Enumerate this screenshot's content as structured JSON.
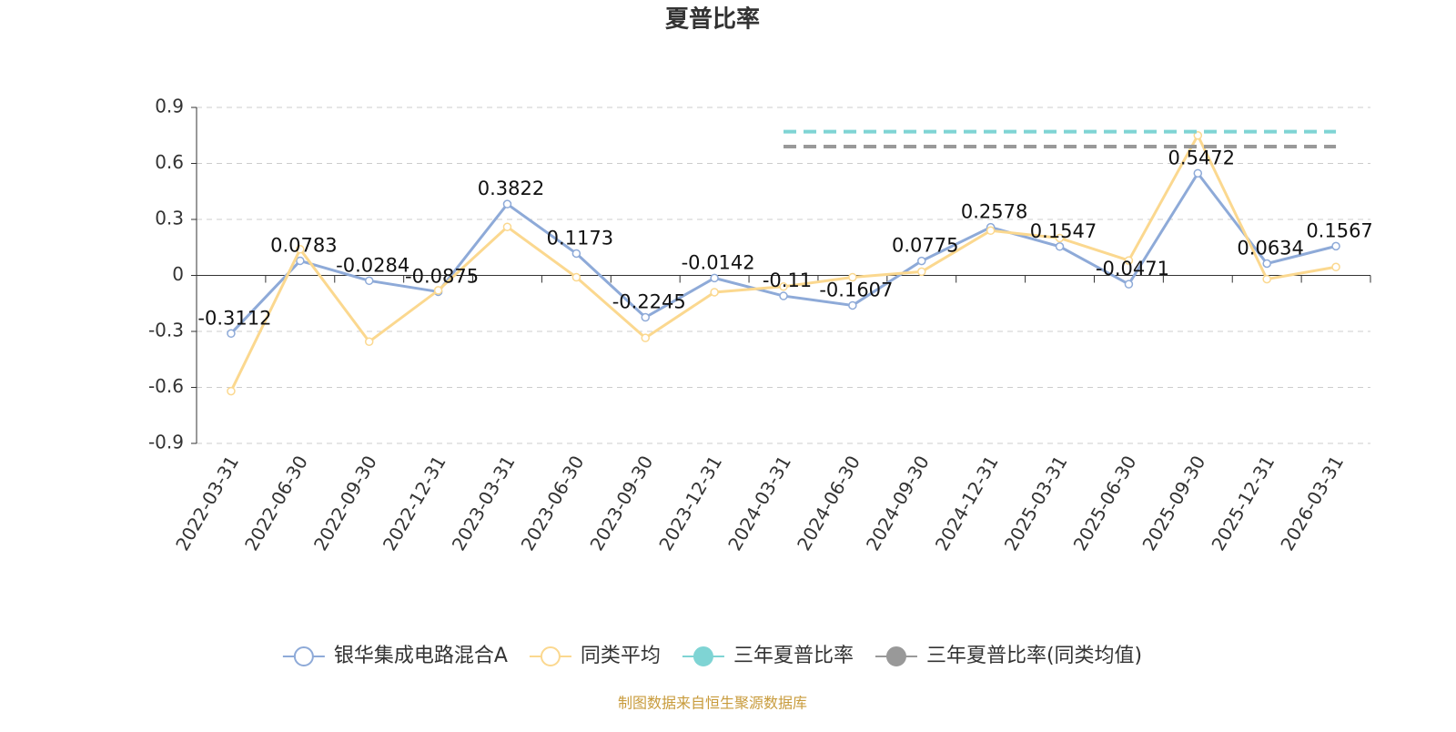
{
  "chart_data": {
    "type": "line",
    "title": "夏普比率",
    "categories": [
      "2022-03-31",
      "2022-06-30",
      "2022-09-30",
      "2022-12-31",
      "2023-03-31",
      "2023-06-30",
      "2023-09-30",
      "2023-12-31",
      "2024-03-31",
      "2024-06-30",
      "2024-09-30",
      "2024-12-31",
      "2025-03-31",
      "2025-06-30",
      "2025-09-30",
      "2025-12-31",
      "2026-03-31"
    ],
    "series": [
      {
        "name": "银华集成电路混合A",
        "color": "#8eaad8",
        "values": [
          -0.3112,
          0.0783,
          -0.0284,
          -0.0875,
          0.3822,
          0.1173,
          -0.2245,
          -0.0142,
          -0.11,
          -0.1607,
          0.0775,
          0.2578,
          0.1547,
          -0.0471,
          0.5472,
          0.0634,
          0.1567
        ]
      },
      {
        "name": "同类平均",
        "color": "#fbd88f",
        "values": [
          -0.62,
          0.14,
          -0.355,
          -0.08,
          0.26,
          -0.01,
          -0.335,
          -0.09,
          -0.06,
          -0.01,
          0.02,
          0.24,
          0.2,
          0.08,
          0.75,
          -0.02,
          0.045
        ]
      },
      {
        "name": "三年夏普比率",
        "color": "#7fd4d4",
        "values": [
          null,
          null,
          null,
          null,
          null,
          null,
          null,
          null,
          0.77,
          0.77,
          0.77,
          0.77,
          0.77,
          0.77,
          0.77,
          0.77,
          0.77
        ]
      },
      {
        "name": "三年夏普比率(同类均值)",
        "color": "#999999",
        "values": [
          null,
          null,
          null,
          null,
          null,
          null,
          null,
          null,
          0.69,
          0.69,
          0.69,
          0.69,
          0.69,
          0.69,
          0.69,
          0.69,
          0.69
        ]
      }
    ],
    "ylim": [
      -0.9,
      0.9
    ],
    "yticks": [
      0.9,
      0.6,
      0.3,
      0,
      -0.3,
      -0.6,
      -0.9
    ],
    "grid": true,
    "source": "制图数据来自恒生聚源数据库"
  }
}
